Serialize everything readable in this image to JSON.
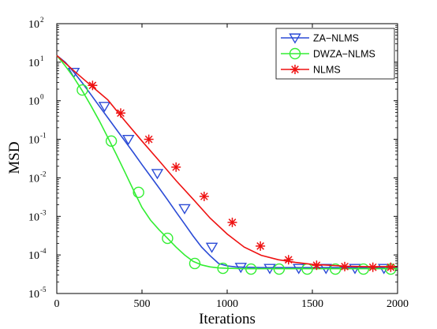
{
  "chart_data": {
    "type": "line",
    "xlabel": "Iterations",
    "ylabel": "MSD",
    "xlim": [
      0,
      2000
    ],
    "ylim": [
      1e-05,
      100
    ],
    "yscale": "log",
    "grid": false,
    "legend_position": "top-right",
    "x_ticks": [
      0,
      500,
      1000,
      1500,
      2000
    ],
    "y_tick_exponents": [
      -5,
      -4,
      -3,
      -2,
      -1,
      0,
      1,
      2
    ],
    "y_tick_base": "10",
    "series": [
      {
        "name": "ZA−NLMS",
        "color": "#2b4bd6",
        "marker": "triangle-down",
        "curve": [
          [
            0,
            15
          ],
          [
            50,
            10
          ],
          [
            100,
            5.5
          ],
          [
            150,
            2.9
          ],
          [
            200,
            1.45
          ],
          [
            250,
            0.72
          ],
          [
            300,
            0.36
          ],
          [
            350,
            0.18
          ],
          [
            400,
            0.09
          ],
          [
            450,
            0.045
          ],
          [
            500,
            0.022
          ],
          [
            550,
            0.011
          ],
          [
            600,
            0.0055
          ],
          [
            650,
            0.0027
          ],
          [
            700,
            0.0013
          ],
          [
            750,
            0.00064
          ],
          [
            800,
            0.00031
          ],
          [
            850,
            0.00016
          ],
          [
            900,
            9.5e-05
          ],
          [
            950,
            6e-05
          ],
          [
            1000,
            5.2e-05
          ],
          [
            1050,
            4.9e-05
          ],
          [
            1100,
            4.8e-05
          ],
          [
            1200,
            4.7e-05
          ],
          [
            1400,
            4.7e-05
          ],
          [
            1600,
            4.7e-05
          ],
          [
            2000,
            4.7e-05
          ]
        ],
        "markers": [
          [
            100,
            5.5
          ],
          [
            280,
            0.72
          ],
          [
            420,
            0.1
          ],
          [
            590,
            0.013
          ],
          [
            750,
            0.0016
          ],
          [
            910,
            0.00016
          ],
          [
            1080,
            4.8e-05
          ],
          [
            1250,
            4.5e-05
          ],
          [
            1420,
            4.5e-05
          ],
          [
            1580,
            4.5e-05
          ],
          [
            1750,
            4.5e-05
          ],
          [
            1920,
            4.5e-05
          ]
        ]
      },
      {
        "name": "DWZA−NLMS",
        "color": "#33ee33",
        "marker": "circle",
        "curve": [
          [
            0,
            15
          ],
          [
            50,
            8
          ],
          [
            100,
            4
          ],
          [
            150,
            1.8
          ],
          [
            200,
            0.75
          ],
          [
            250,
            0.3
          ],
          [
            300,
            0.11
          ],
          [
            350,
            0.04
          ],
          [
            400,
            0.014
          ],
          [
            450,
            0.0048
          ],
          [
            500,
            0.0017
          ],
          [
            550,
            0.0008
          ],
          [
            600,
            0.00045
          ],
          [
            650,
            0.00027
          ],
          [
            700,
            0.00016
          ],
          [
            750,
            0.0001
          ],
          [
            800,
            6.8e-05
          ],
          [
            850,
            5.5e-05
          ],
          [
            900,
            4.9e-05
          ],
          [
            950,
            4.6e-05
          ],
          [
            1000,
            4.5e-05
          ],
          [
            1100,
            4.4e-05
          ],
          [
            1300,
            4.4e-05
          ],
          [
            1600,
            4.4e-05
          ],
          [
            2000,
            4.4e-05
          ]
        ],
        "markers": [
          [
            150,
            1.9
          ],
          [
            320,
            0.09
          ],
          [
            480,
            0.0042
          ],
          [
            650,
            0.00027
          ],
          [
            810,
            6e-05
          ],
          [
            975,
            4.5e-05
          ],
          [
            1140,
            4.3e-05
          ],
          [
            1305,
            4.3e-05
          ],
          [
            1470,
            4.3e-05
          ],
          [
            1635,
            4.3e-05
          ],
          [
            1800,
            4.3e-05
          ],
          [
            1960,
            4.3e-05
          ]
        ]
      },
      {
        "name": "NLMS",
        "color": "#ee1111",
        "marker": "star",
        "curve": [
          [
            0,
            15
          ],
          [
            100,
            6
          ],
          [
            200,
            2.5
          ],
          [
            300,
            1.05
          ],
          [
            400,
            0.3
          ],
          [
            500,
            0.09
          ],
          [
            600,
            0.028
          ],
          [
            700,
            0.0085
          ],
          [
            800,
            0.0028
          ],
          [
            900,
            0.0009
          ],
          [
            1000,
            0.00035
          ],
          [
            1100,
            0.00016
          ],
          [
            1200,
            9.8e-05
          ],
          [
            1300,
            7.5e-05
          ],
          [
            1400,
            6.4e-05
          ],
          [
            1500,
            5.7e-05
          ],
          [
            1600,
            5.4e-05
          ],
          [
            1700,
            5.1e-05
          ],
          [
            1800,
            5e-05
          ],
          [
            1900,
            5e-05
          ],
          [
            2000,
            5e-05
          ]
        ],
        "markers": [
          [
            210,
            2.5
          ],
          [
            375,
            0.48
          ],
          [
            540,
            0.1
          ],
          [
            700,
            0.019
          ],
          [
            865,
            0.0033
          ],
          [
            1030,
            0.0007
          ],
          [
            1195,
            0.00017
          ],
          [
            1360,
            7.5e-05
          ],
          [
            1525,
            5.4e-05
          ],
          [
            1690,
            5e-05
          ],
          [
            1855,
            4.8e-05
          ],
          [
            1960,
            4.8e-05
          ]
        ]
      }
    ]
  }
}
